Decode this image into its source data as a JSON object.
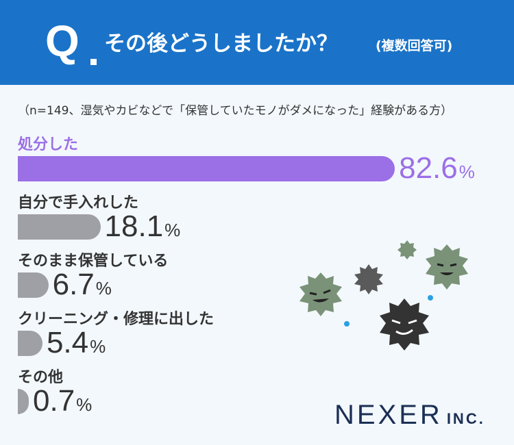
{
  "header": {
    "q_letter": "Q",
    "question": "その後どうしましたか？",
    "question_note": "(複数回答可)"
  },
  "chart_data": {
    "type": "bar",
    "orientation": "horizontal",
    "subtitle": "（n=149、湿気やカビなどで「保管していたモノがダメになった」経験がある方）",
    "unit": "%",
    "categories": [
      "処分した",
      "自分で手入れした",
      "そのまま保管している",
      "クリーニング・修理に出した",
      "その他"
    ],
    "values": [
      82.6,
      18.1,
      6.7,
      5.4,
      0.7
    ],
    "value_labels": [
      "82.6",
      "18.1",
      "6.7",
      "5.4",
      "0.7"
    ],
    "highlight_color": "#9b6fe6",
    "other_color": "#9fa0a6",
    "xlim": [
      0,
      100
    ],
    "grid": false,
    "legend": "none"
  },
  "logo": {
    "main": "NEXER",
    "sub": "INC."
  },
  "decoration": {
    "icons": [
      "germ-icon",
      "germ-icon",
      "germ-icon",
      "germ-icon",
      "germ-icon"
    ],
    "colors": [
      "#7a9378",
      "#555555",
      "#333333",
      "#2aa0e0"
    ]
  }
}
